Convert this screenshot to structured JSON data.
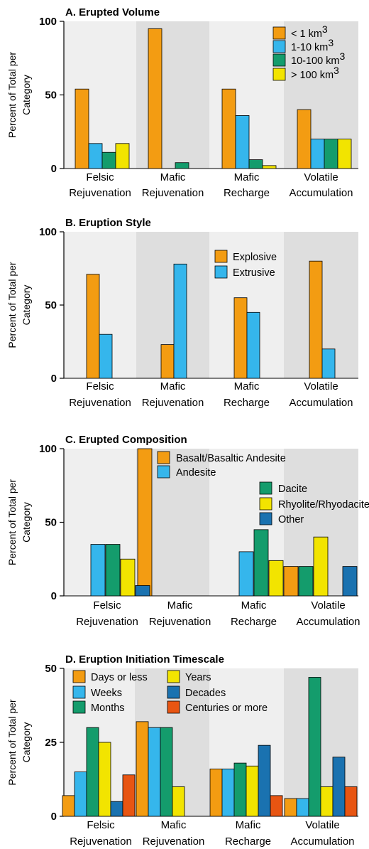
{
  "colors": {
    "orange": "#F39C12",
    "lightblue": "#35B6EC",
    "green": "#149C6C",
    "yellow": "#F2E400",
    "darkblue": "#1A72B0",
    "red": "#E85512",
    "bg_light": "#EFEFEF",
    "bg_dark": "#DEDEDE"
  },
  "chart_data": [
    {
      "type": "bar",
      "title": "A. Erupted Volume",
      "ylabel": "Percent of Total per Category",
      "ylabel_lines": [
        "Percent of Total per",
        "Category"
      ],
      "ylim": [
        0,
        100
      ],
      "yticks": [
        "0",
        "50",
        "100"
      ],
      "ytick_values": [
        0,
        50,
        100
      ],
      "categories": [
        "Felsic Rejuvenation",
        "Mafic Rejuvenation",
        "Mafic Recharge",
        "Volatile Accumulation"
      ],
      "category_lines": [
        [
          "Felsic",
          "Rejuvenation"
        ],
        [
          "Mafic",
          "Rejuvenation"
        ],
        [
          "Mafic",
          "Recharge"
        ],
        [
          "Volatile",
          "Accumulation"
        ]
      ],
      "legend_position": "top-right",
      "series": [
        {
          "name": "< 1 km3",
          "legend_base": "< 1 km",
          "legend_sup": "3",
          "color": "#F39C12",
          "values": [
            54,
            95,
            54,
            40
          ]
        },
        {
          "name": "1-10 km3",
          "legend_base": "1-10 km",
          "legend_sup": "3",
          "color": "#35B6EC",
          "values": [
            17,
            0,
            36,
            20
          ]
        },
        {
          "name": "10-100 km3",
          "legend_base": "10-100 km",
          "legend_sup": "3",
          "color": "#149C6C",
          "values": [
            11,
            4,
            6,
            20
          ]
        },
        {
          "name": "> 100 km3",
          "legend_base": "> 100 km",
          "legend_sup": "3",
          "color": "#F2E400",
          "values": [
            17,
            0,
            2,
            20
          ]
        }
      ]
    },
    {
      "type": "bar",
      "title": "B. Eruption Style",
      "ylabel": "Percent of Total per Category",
      "ylabel_lines": [
        "Percent of Total per",
        "Category"
      ],
      "ylim": [
        0,
        100
      ],
      "yticks": [
        "0",
        "50",
        "100"
      ],
      "ytick_values": [
        0,
        50,
        100
      ],
      "categories": [
        "Felsic Rejuvenation",
        "Mafic Rejuvenation",
        "Mafic Recharge",
        "Volatile Accumulation"
      ],
      "category_lines": [
        [
          "Felsic",
          "Rejuvenation"
        ],
        [
          "Mafic",
          "Rejuvenation"
        ],
        [
          "Mafic",
          "Recharge"
        ],
        [
          "Volatile",
          "Accumulation"
        ]
      ],
      "legend_position": "center",
      "series": [
        {
          "name": "Explosive",
          "color": "#F39C12",
          "values": [
            71,
            23,
            55,
            80
          ]
        },
        {
          "name": "Extrusive",
          "color": "#35B6EC",
          "values": [
            30,
            78,
            45,
            20
          ]
        }
      ]
    },
    {
      "type": "bar",
      "title": "C. Erupted Composition",
      "ylabel": "Percent of Total per Category",
      "ylabel_lines": [
        "Percent of Total per",
        "Category"
      ],
      "ylim": [
        0,
        100
      ],
      "yticks": [
        "0",
        "50",
        "100"
      ],
      "ytick_values": [
        0,
        50,
        100
      ],
      "categories": [
        "Felsic Rejuvenation",
        "Mafic Rejuvenation",
        "Mafic Recharge",
        "Volatile Accumulation"
      ],
      "category_lines": [
        [
          "Felsic",
          "Rejuvenation"
        ],
        [
          "Mafic",
          "Rejuvenation"
        ],
        [
          "Mafic",
          "Recharge"
        ],
        [
          "Volatile",
          "Accumulation"
        ]
      ],
      "legend_position": "top",
      "series": [
        {
          "name": "Basalt/Basaltic Andesite",
          "color": "#F39C12",
          "values": [
            0,
            100,
            0,
            20
          ]
        },
        {
          "name": "Andesite",
          "color": "#35B6EC",
          "values": [
            35,
            0,
            30,
            0
          ]
        },
        {
          "name": "Dacite",
          "color": "#149C6C",
          "values": [
            35,
            0,
            45,
            20
          ]
        },
        {
          "name": "Rhyolite/Rhyodacite",
          "color": "#F2E400",
          "values": [
            25,
            0,
            24,
            40
          ]
        },
        {
          "name": "Other",
          "color": "#1A72B0",
          "values": [
            7,
            0,
            0,
            20
          ]
        }
      ]
    },
    {
      "type": "bar",
      "title": "D. Eruption Initiation Timescale",
      "ylabel": "Percent of Total per Category",
      "ylabel_lines": [
        "Percent of Total per",
        "Category"
      ],
      "ylim": [
        0,
        50
      ],
      "yticks": [
        "0",
        "25",
        "50"
      ],
      "ytick_values": [
        0,
        25,
        50
      ],
      "categories": [
        "Felsic Rejuvenation",
        "Mafic Rejuvenation",
        "Mafic Recharge",
        "Volatile Accumulation"
      ],
      "category_lines": [
        [
          "Felsic",
          "Rejuvenation"
        ],
        [
          "Mafic",
          "Rejuvenation"
        ],
        [
          "Mafic",
          "Recharge"
        ],
        [
          "Volatile",
          "Accumulation"
        ]
      ],
      "legend_position": "top-left",
      "series": [
        {
          "name": "Days or less",
          "color": "#F39C12",
          "values": [
            7,
            32,
            16,
            6
          ]
        },
        {
          "name": "Weeks",
          "color": "#35B6EC",
          "values": [
            15,
            30,
            16,
            6
          ]
        },
        {
          "name": "Months",
          "color": "#149C6C",
          "values": [
            30,
            30,
            18,
            47
          ]
        },
        {
          "name": "Years",
          "color": "#F2E400",
          "values": [
            25,
            10,
            17,
            10
          ]
        },
        {
          "name": "Decades",
          "color": "#1A72B0",
          "values": [
            5,
            0,
            24,
            20
          ]
        },
        {
          "name": "Centuries or more",
          "color": "#E85512",
          "values": [
            14,
            0,
            7,
            10
          ]
        }
      ]
    }
  ]
}
